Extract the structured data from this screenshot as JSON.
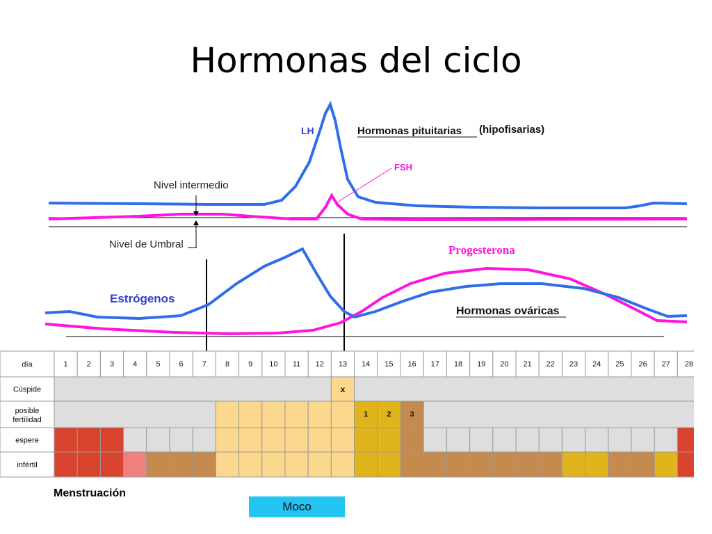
{
  "title": "Hormonas del ciclo",
  "pituitary": {
    "heading": "Hormonas pituitarias",
    "heading_paren": "(hipofisarias)",
    "lh_label": "LH",
    "fsh_label": "FSH",
    "intermediate_label": "Nivel intermedio",
    "threshold_label": "Nivel de Umbral"
  },
  "ovarian": {
    "heading": "Hormonas ováricas",
    "estrogen_label": "Estrógenos",
    "progesterone_label": "Progesterona"
  },
  "colors": {
    "blue_curve": "#2f6ee8",
    "magenta_curve": "#ff14e0",
    "red": "#d9442f",
    "pink": "#f08080",
    "brown": "#c58a4e",
    "light_orange": "#fcd88e",
    "mustard": "#e0b41c",
    "grey": "#dedede",
    "cyan": "#23c4f0"
  },
  "table": {
    "day_label": "día",
    "days": [
      "1",
      "2",
      "3",
      "4",
      "5",
      "6",
      "7",
      "8",
      "9",
      "10",
      "11",
      "12",
      "13",
      "14",
      "15",
      "16",
      "17",
      "18",
      "19",
      "20",
      "21",
      "22",
      "23",
      "24",
      "25",
      "26",
      "27",
      "28"
    ],
    "rows": [
      {
        "label": "Cúspide",
        "lines": [
          "Cúspide"
        ]
      },
      {
        "label": "posible fertilidad",
        "lines": [
          "posible",
          "fertilidad"
        ]
      },
      {
        "label": "espere",
        "lines": [
          "espere"
        ]
      },
      {
        "label": "infértil",
        "lines": [
          "infértil"
        ]
      }
    ],
    "peak_mark": "x",
    "fertility_marks": [
      "1",
      "2",
      "3"
    ],
    "espere_colors": [
      "red",
      "red",
      "red",
      "grey",
      "grey",
      "grey",
      "grey",
      "light_orange",
      "light_orange",
      "light_orange",
      "light_orange",
      "light_orange",
      "light_orange",
      "mustard",
      "mustard",
      "brown",
      "grey",
      "grey",
      "grey",
      "grey",
      "grey",
      "grey",
      "grey",
      "grey",
      "grey",
      "grey",
      "grey",
      "red"
    ],
    "infertil_colors": [
      "red",
      "red",
      "red",
      "pink",
      "brown",
      "brown",
      "brown",
      "light_orange",
      "light_orange",
      "light_orange",
      "light_orange",
      "light_orange",
      "light_orange",
      "mustard",
      "mustard",
      "brown",
      "brown",
      "brown",
      "brown",
      "brown",
      "brown",
      "brown",
      "mustard",
      "mustard",
      "brown",
      "brown",
      "mustard",
      "red"
    ]
  },
  "menstruation_label": "Menstruación",
  "moco_label": "Moco"
}
